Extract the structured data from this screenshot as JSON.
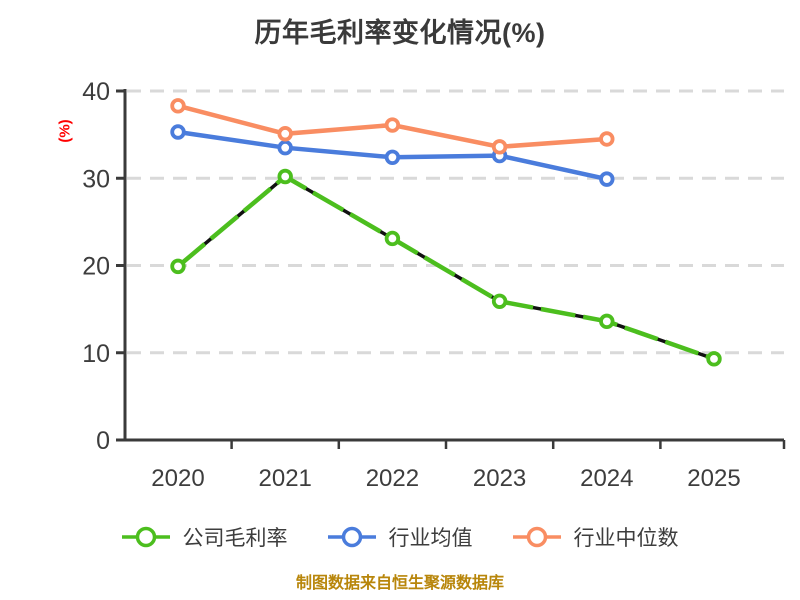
{
  "title": "历年毛利率变化情况(%)",
  "footer_note": "制图数据来自恒生聚源数据库",
  "colors": {
    "background": "#ffffff",
    "title": "#3a3a3a",
    "axis": "#3a3a3a",
    "tick_label": "#3d3d3d",
    "gridline": "#d9d9d9",
    "y_unit_label": "#ff0000",
    "footer": "#b8860b",
    "marker_fill": "#ffffff",
    "dash_underlay": "#111111"
  },
  "chart_data": {
    "type": "line",
    "title": "历年毛利率变化情况(%)",
    "ylabel": "(%)",
    "xlabel": "",
    "categories": [
      "2020",
      "2021",
      "2022",
      "2023",
      "2024",
      "2025"
    ],
    "y_ticks": [
      0,
      10,
      20,
      30,
      40
    ],
    "ylim": [
      0,
      40
    ],
    "grid": "horizontal-dashed",
    "legend_position": "bottom",
    "source_note": "制图数据来自恒生聚源数据库",
    "series": [
      {
        "name": "公司毛利率",
        "color": "#4cbe1e",
        "marker": "circle-open",
        "line": "solid-with-black-dash-overlay",
        "values": [
          19.9,
          30.2,
          23.1,
          15.9,
          13.6,
          9.3
        ]
      },
      {
        "name": "行业均值",
        "color": "#4a7cdc",
        "marker": "circle-open",
        "line": "solid",
        "values": [
          35.3,
          33.5,
          32.4,
          32.6,
          29.9,
          null
        ]
      },
      {
        "name": "行业中位数",
        "color": "#f98d62",
        "marker": "circle-open",
        "line": "solid",
        "values": [
          38.3,
          35.1,
          36.1,
          33.6,
          34.5,
          null
        ]
      }
    ]
  }
}
